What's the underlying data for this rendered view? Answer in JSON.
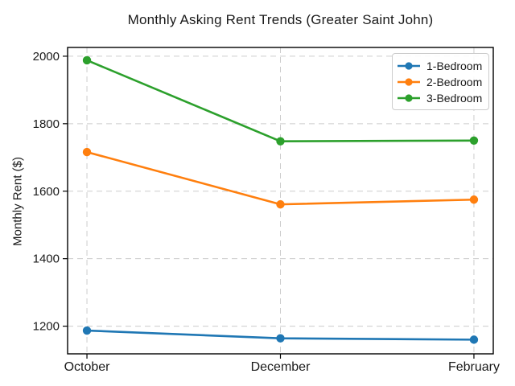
{
  "title": "Monthly Asking Rent Trends (Greater Saint John)",
  "chart_data": {
    "type": "line",
    "title": "Monthly Asking Rent Trends (Greater Saint John)",
    "xlabel": "",
    "ylabel": "Monthly Rent ($)",
    "categories": [
      "October",
      "December",
      "February"
    ],
    "series": [
      {
        "name": "1-Bedroom",
        "color": "#1f77b4",
        "values": [
          1187,
          1164,
          1160
        ]
      },
      {
        "name": "2-Bedroom",
        "color": "#ff7f0e",
        "values": [
          1716,
          1561,
          1575
        ]
      },
      {
        "name": "3-Bedroom",
        "color": "#2ca02c",
        "values": [
          1988,
          1748,
          1750
        ]
      }
    ],
    "yticks": [
      1200,
      1400,
      1600,
      1800,
      2000
    ],
    "ylim": [
      1118,
      2026
    ],
    "grid": true,
    "grid_style": "dashed",
    "legend_position": "upper-right",
    "marker": "circle",
    "style": {
      "background": "#ffffff",
      "grid_color": "#cccccc",
      "spine_color": "#000000",
      "tick_label_color": "#1a1a1a",
      "line_width": 2.6,
      "marker_radius": 5.2
    }
  }
}
